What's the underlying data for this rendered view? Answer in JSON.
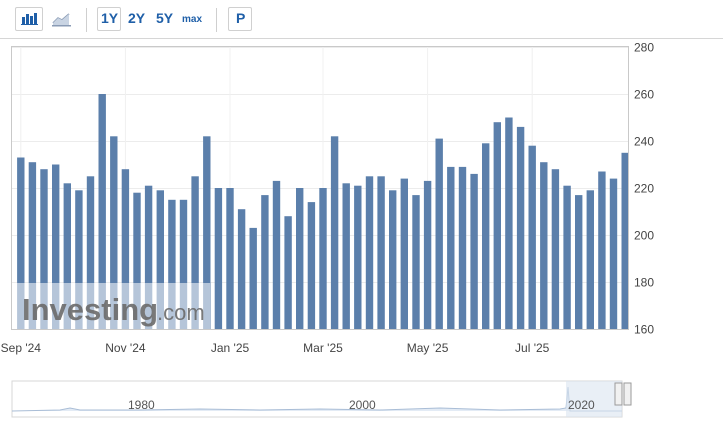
{
  "toolbar": {
    "icons": [
      "bar-chart-icon",
      "line-chart-icon"
    ],
    "ranges": [
      "1Y",
      "2Y",
      "5Y",
      "max"
    ],
    "selected_range": "1Y",
    "p_label": "P"
  },
  "watermark": {
    "text": "Investing",
    "suffix": ".com"
  },
  "chart_data": {
    "type": "bar",
    "title": "",
    "xlabel": "",
    "ylabel": "",
    "ylim": [
      160,
      280
    ],
    "yticks": [
      160,
      180,
      200,
      220,
      240,
      260,
      280
    ],
    "xtick_labels": [
      "Sep '24",
      "Nov '24",
      "Jan '25",
      "Mar '25",
      "May '25",
      "Jul '25"
    ],
    "grid": true,
    "bar_color": "#5b7fab",
    "values": [
      233,
      231,
      228,
      230,
      222,
      219,
      225,
      260,
      242,
      228,
      218,
      221,
      219,
      215,
      215,
      225,
      242,
      220,
      220,
      211,
      203,
      217,
      223,
      208,
      220,
      214,
      220,
      242,
      222,
      221,
      225,
      225,
      219,
      224,
      217,
      223,
      241,
      229,
      229,
      226,
      239,
      248,
      250,
      246,
      238,
      231,
      228,
      221,
      217,
      219,
      227,
      224,
      235
    ]
  },
  "navigator": {
    "labels": [
      "1980",
      "2000",
      "2020"
    ]
  }
}
